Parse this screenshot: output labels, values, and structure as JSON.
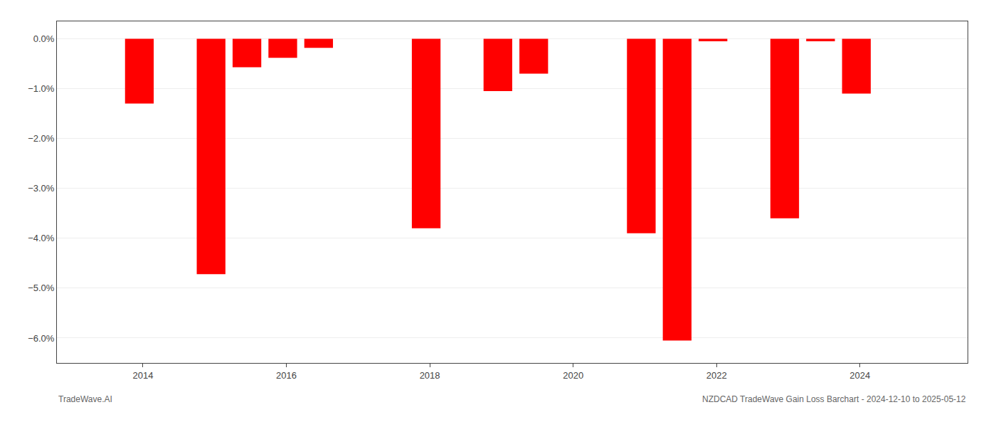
{
  "chart_data": {
    "type": "bar",
    "x": [
      2013.95,
      2014.95,
      2015.45,
      2015.95,
      2016.45,
      2017.95,
      2018.95,
      2019.45,
      2020.95,
      2021.45,
      2021.95,
      2022.95,
      2023.45,
      2023.95
    ],
    "values": [
      -1.3,
      -4.72,
      -0.57,
      -0.38,
      -0.18,
      -3.8,
      -1.05,
      -0.7,
      -3.9,
      -6.05,
      -0.05,
      -3.6,
      -0.05,
      -1.1
    ],
    "color": "#ff0000",
    "xlim": [
      2012.8,
      2025.5
    ],
    "xticks": [
      2014,
      2016,
      2018,
      2020,
      2022,
      2024
    ],
    "ylim": [
      -6.5,
      0.35
    ],
    "yticks": [
      {
        "value": 0.0,
        "label": "0.0%"
      },
      {
        "value": -1.0,
        "label": "−1.0%"
      },
      {
        "value": -2.0,
        "label": "−2.0%"
      },
      {
        "value": -3.0,
        "label": "−3.0%"
      },
      {
        "value": -4.0,
        "label": "−4.0%"
      },
      {
        "value": -5.0,
        "label": "−5.0%"
      },
      {
        "value": -6.0,
        "label": "−6.0%"
      }
    ],
    "grid": true,
    "annotations": [
      "TradeWave.AI",
      "NZDCAD TradeWave Gain Loss Barchart - 2024-12-10 to 2025-05-12"
    ]
  }
}
